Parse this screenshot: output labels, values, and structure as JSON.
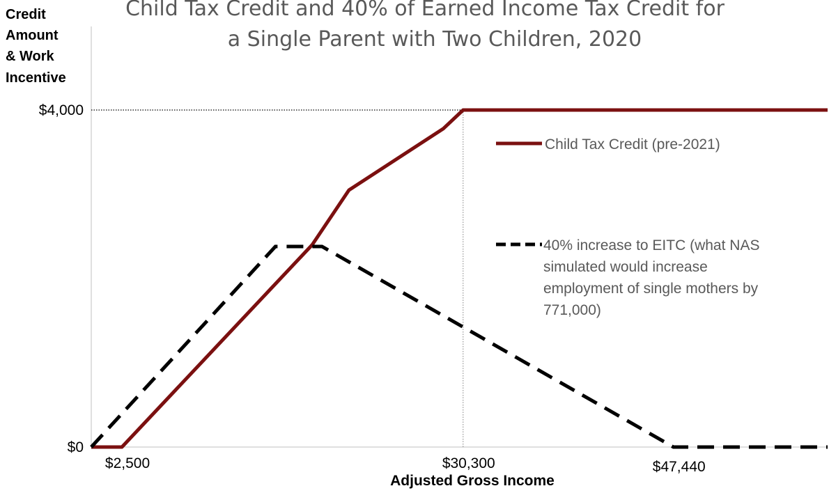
{
  "chart_data": {
    "type": "line",
    "title": [
      "Child Tax Credit and 40% of Earned Income Tax Credit for",
      "a Single Parent with Two Children, 2020"
    ],
    "ylabel": [
      "Credit",
      "Amount",
      "& Work",
      "Incentive"
    ],
    "xlabel": "Adjusted Gross Income",
    "xlim": [
      0,
      60000
    ],
    "ylim": [
      0,
      4000
    ],
    "x_ticks": [
      {
        "value": 2500,
        "label": "$2,500"
      },
      {
        "value": 30300,
        "label": "$30,300"
      },
      {
        "value": 47440,
        "label": "$47,440"
      }
    ],
    "y_ticks": [
      {
        "value": 0,
        "label": "$0"
      },
      {
        "value": 4000,
        "label": "$4,000"
      }
    ],
    "reference_lines": [
      {
        "orientation": "horizontal",
        "value": 4000,
        "from_x": 0,
        "to_x": 30300
      },
      {
        "orientation": "vertical",
        "value": 30300,
        "from_y": 0,
        "to_y": 4000
      }
    ],
    "series": [
      {
        "name": "Child Tax Credit (pre-2021)",
        "color": "#7b1010",
        "style": "solid",
        "points": [
          [
            0,
            0
          ],
          [
            2500,
            0
          ],
          [
            18000,
            2400
          ],
          [
            21000,
            3050
          ],
          [
            28700,
            3780
          ],
          [
            30300,
            4000
          ],
          [
            60000,
            4000
          ]
        ],
        "legend_lines": [
          "Child Tax Credit (pre-2021)"
        ]
      },
      {
        "name": "40% increase to EITC (what NAS simulated would increase employment of single mothers by 771,000)",
        "color": "#000000",
        "style": "dashed",
        "points": [
          [
            0,
            0
          ],
          [
            15000,
            2380
          ],
          [
            18800,
            2380
          ],
          [
            47440,
            0
          ],
          [
            60000,
            0
          ]
        ],
        "legend_lines": [
          "40% increase to EITC (what NAS",
          "simulated would increase",
          "employment of single mothers by",
          "771,000)"
        ]
      }
    ],
    "legend_position": "right"
  }
}
